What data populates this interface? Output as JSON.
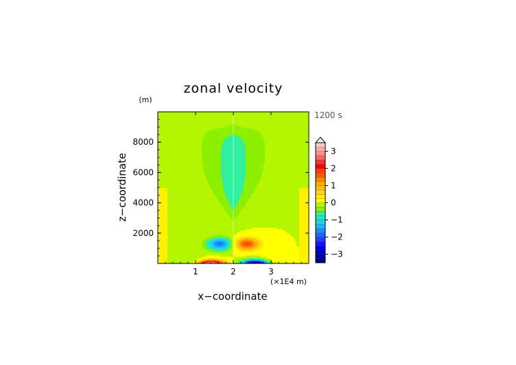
{
  "chart_data": {
    "type": "heatmap",
    "title": "zonal velocity",
    "xlabel": "x−coordinate",
    "ylabel": "z−coordinate",
    "x_unit": "(×1E4 m)",
    "y_unit": "(m)",
    "time_label": "1200 s",
    "xlim": [
      0,
      4
    ],
    "ylim": [
      0,
      10000
    ],
    "x_ticks": [
      1,
      2,
      3
    ],
    "y_ticks": [
      2000,
      4000,
      6000,
      8000
    ],
    "x_tick_labels": [
      "1",
      "2",
      "3"
    ],
    "y_tick_labels": [
      "2000",
      "4000",
      "6000",
      "8000"
    ],
    "grid": false,
    "colorbar": {
      "placement": "right",
      "levels": [
        -3.5,
        -3.25,
        -3,
        -2.75,
        -2.5,
        -2.25,
        -2,
        -1.75,
        -1.5,
        -1.25,
        -1,
        -0.75,
        -0.5,
        -0.25,
        0,
        0.25,
        0.5,
        0.75,
        1,
        1.25,
        1.5,
        1.75,
        2,
        2.25,
        2.5,
        2.75,
        3,
        3.25,
        3.5
      ],
      "colors": [
        "#00007a",
        "#0000aa",
        "#0000cc",
        "#0000ee",
        "#1414ff",
        "#2040ff",
        "#1a66ff",
        "#1a8cff",
        "#1ab4ff",
        "#20d2e6",
        "#20e6c8",
        "#30f0a0",
        "#8cf000",
        "#b4f500",
        "#ffff00",
        "#fff000",
        "#ffd21e",
        "#ffbe00",
        "#ffaa00",
        "#ff8200",
        "#ff5a00",
        "#ff3c14",
        "#ff0000",
        "#ff3232",
        "#ff6464",
        "#ff8c8c",
        "#ffaaaa",
        "#ffc8c8"
      ],
      "tick_values": [
        -3,
        -2,
        -1,
        0,
        1,
        2,
        3
      ],
      "tick_labels": [
        "−3",
        "−2",
        "−1",
        "0",
        "1",
        "2",
        "3"
      ],
      "extend": "max"
    },
    "features": [
      {
        "x": 1.4,
        "z": 0,
        "value": 3.3
      },
      {
        "x": 2.6,
        "z": 0,
        "value": -3.5
      },
      {
        "x": 1.65,
        "z": 1300,
        "value": -1.8
      },
      {
        "x": 2.35,
        "z": 1300,
        "value": 1.8
      }
    ]
  }
}
